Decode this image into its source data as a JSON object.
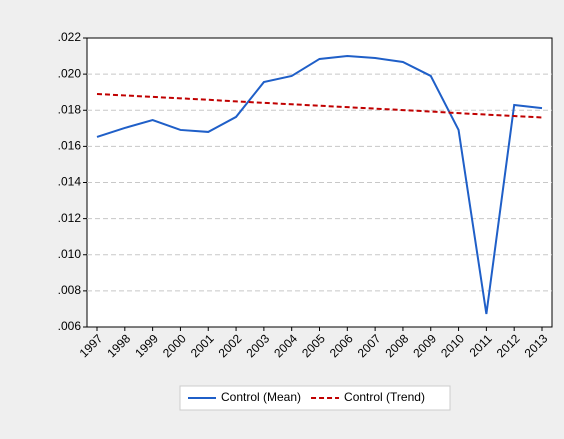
{
  "chart_data": {
    "type": "line",
    "categories": [
      "1997",
      "1998",
      "1999",
      "2000",
      "2001",
      "2002",
      "2003",
      "2004",
      "2005",
      "2006",
      "2007",
      "2008",
      "2009",
      "2010",
      "2011",
      "2012",
      "2013"
    ],
    "series": [
      {
        "name": "Control (Mean)",
        "color": "#1f5fc8",
        "dash": false,
        "values": [
          0.01652,
          0.01702,
          0.01746,
          0.01691,
          0.0168,
          0.01763,
          0.01956,
          0.0199,
          0.02084,
          0.021,
          0.02089,
          0.02067,
          0.0199,
          0.01691,
          0.00672,
          0.01829,
          0.01812
        ]
      },
      {
        "name": "Control (Trend)",
        "color": "#c00000",
        "dash": true,
        "values": [
          0.0189,
          0.01882,
          0.01874,
          0.01866,
          0.01858,
          0.01849,
          0.01841,
          0.01833,
          0.01825,
          0.01817,
          0.01809,
          0.01801,
          0.01793,
          0.01784,
          0.01776,
          0.01768,
          0.0176
        ]
      }
    ],
    "ylim": [
      0.006,
      0.022
    ],
    "yticks": [
      {
        "value": 0.006,
        "label": ".006"
      },
      {
        "value": 0.008,
        "label": ".008"
      },
      {
        "value": 0.01,
        "label": ".010"
      },
      {
        "value": 0.012,
        "label": ".012"
      },
      {
        "value": 0.014,
        "label": ".014"
      },
      {
        "value": 0.016,
        "label": ".016"
      },
      {
        "value": 0.018,
        "label": ".018"
      },
      {
        "value": 0.02,
        "label": ".020"
      },
      {
        "value": 0.022,
        "label": ".022"
      }
    ],
    "grid": true,
    "legend": "bottom"
  }
}
